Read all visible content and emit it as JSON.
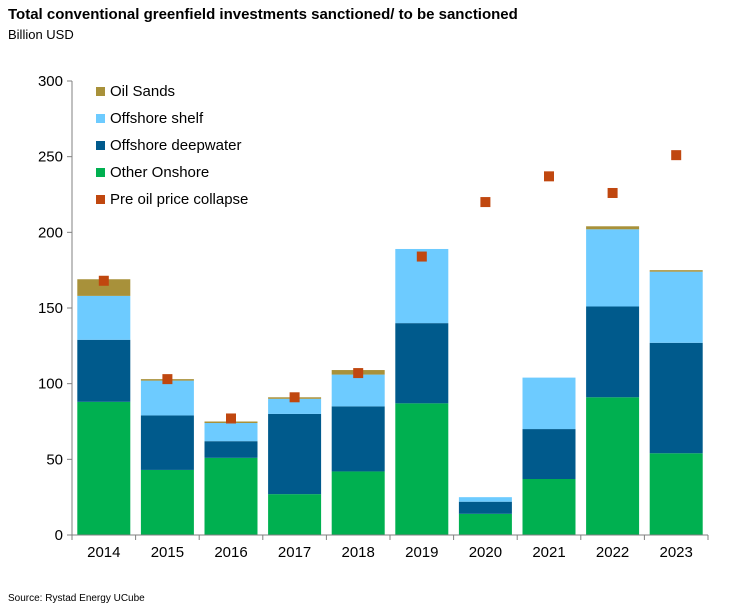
{
  "title": "Total conventional greenfield investments sanctioned/ to be sanctioned",
  "subtitle": "Billion USD",
  "source": "Source: Rystad Energy UCube",
  "chart_data": {
    "type": "bar",
    "stacked": true,
    "categories": [
      "2014",
      "2015",
      "2016",
      "2017",
      "2018",
      "2019",
      "2020",
      "2021",
      "2022",
      "2023"
    ],
    "series": [
      {
        "name": "Other Onshore",
        "color": "#00b050",
        "values": [
          88,
          43,
          51,
          27,
          42,
          87,
          14,
          37,
          91,
          54
        ]
      },
      {
        "name": "Offshore deepwater",
        "color": "#005a8c",
        "values": [
          41,
          36,
          11,
          53,
          43,
          53,
          8,
          33,
          60,
          73
        ]
      },
      {
        "name": "Offshore shelf",
        "color": "#6dcbff",
        "values": [
          29,
          23,
          12,
          10,
          21,
          49,
          3,
          34,
          51,
          47
        ]
      },
      {
        "name": "Oil Sands",
        "color": "#a8913a",
        "values": [
          11,
          1,
          1,
          1,
          3,
          0,
          0,
          0,
          2,
          1
        ]
      }
    ],
    "markers": {
      "name": "Pre oil price collapse",
      "color": "#c0470f",
      "values": [
        168,
        103,
        77,
        91,
        107,
        184,
        220,
        237,
        226,
        251
      ]
    },
    "legend_order": [
      "Oil Sands",
      "Offshore shelf",
      "Offshore deepwater",
      "Other Onshore",
      "Pre oil price collapse"
    ],
    "ylim": [
      0,
      300
    ],
    "yticks": [
      0,
      50,
      100,
      150,
      200,
      250,
      300
    ],
    "legend_position": "top-left",
    "grid": false
  }
}
